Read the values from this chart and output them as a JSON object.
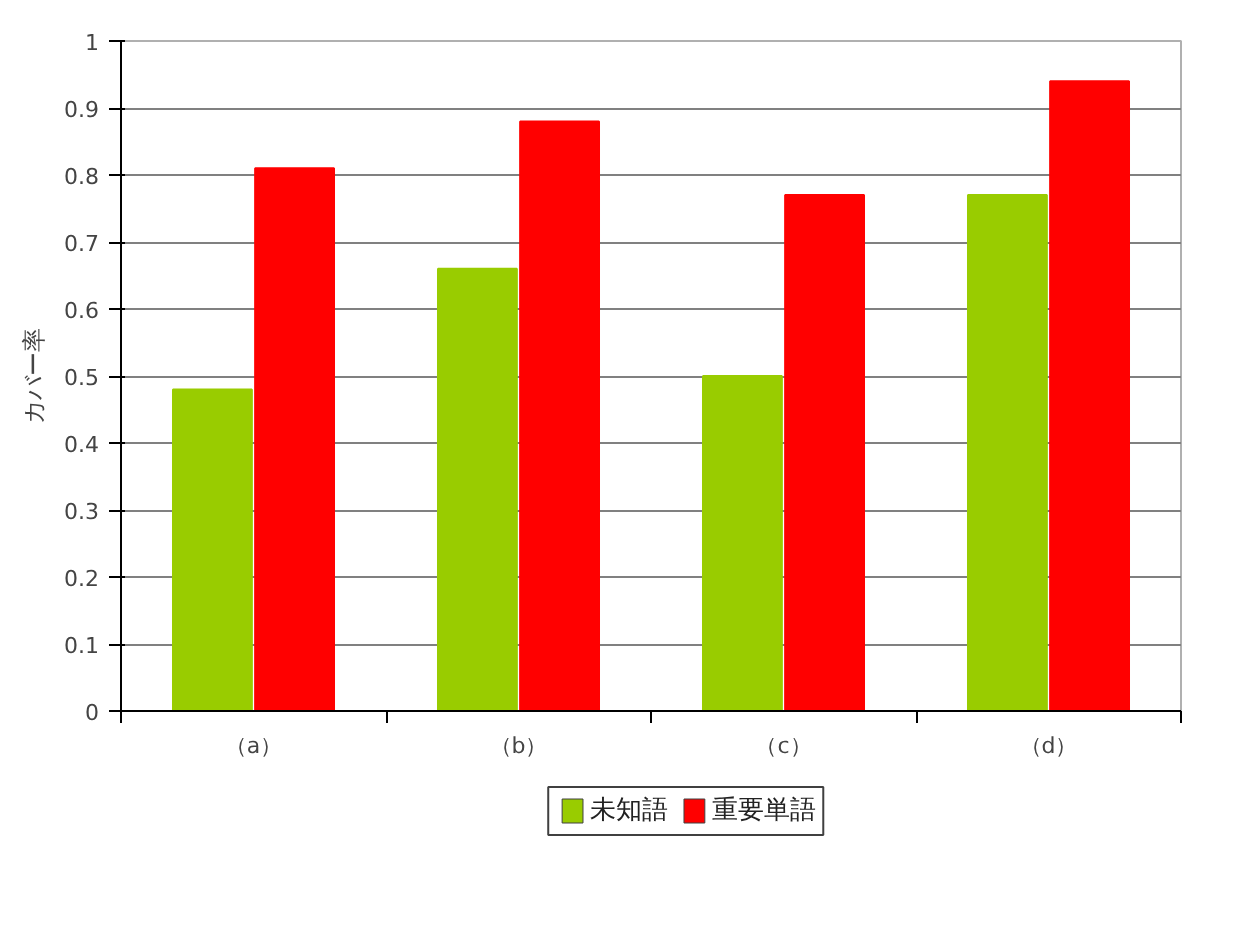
{
  "chart_data": {
    "type": "bar",
    "ylabel": "カバー率",
    "categories": [
      "（a）",
      "（b）",
      "（c）",
      "（d）"
    ],
    "series": [
      {
        "name": "未知語",
        "color": "#99cc00",
        "values": [
          0.48,
          0.66,
          0.5,
          0.77
        ]
      },
      {
        "name": "重要単語",
        "color": "#ff0000",
        "values": [
          0.81,
          0.88,
          0.77,
          0.94
        ]
      }
    ],
    "ylim": [
      0,
      1
    ],
    "yticks": [
      0,
      0.1,
      0.2,
      0.3,
      0.4,
      0.5,
      0.6,
      0.7,
      0.8,
      0.9,
      1
    ],
    "grid": "y",
    "legend": "bottom"
  }
}
